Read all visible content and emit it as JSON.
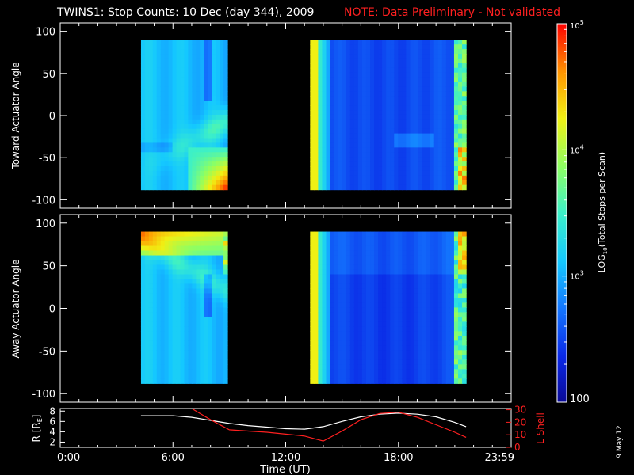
{
  "title_main": "TWINS1: Stop Counts: 10 Dec (day 344), 2009",
  "title_note": "NOTE: Data Preliminary - Not validated",
  "date_stamp": "9 May 12",
  "colors": {
    "background": "#000000",
    "axis": "#ffffff",
    "note": "#ff2020",
    "lshell": "#ff2020",
    "radius": "#ffffff"
  },
  "colorbar": {
    "label": "LOG10(Total Stops per Scan)",
    "label_main": "LOG",
    "label_sub": "10",
    "label_rest": "(Total Stops per Scan)",
    "tick_labels": [
      {
        "base": "10",
        "exp": "5",
        "value": 100000
      },
      {
        "base": "10",
        "exp": "4",
        "value": 10000
      },
      {
        "base": "10",
        "exp": "3",
        "value": 1000
      },
      {
        "base": "100",
        "exp": "",
        "value": 100
      }
    ],
    "scale": "log",
    "range": [
      100,
      100000
    ]
  },
  "chart_data": [
    {
      "type": "heatmap",
      "ylabel": "Toward Actuator Angle",
      "ylim": [
        -110,
        110
      ],
      "yticks": [
        "100",
        "50",
        "0",
        "-50",
        "-100"
      ],
      "ytick_values": [
        100,
        50,
        0,
        -50,
        -100
      ],
      "xlim_hours": [
        0,
        24
      ],
      "data_segments_hours": [
        [
          4.3,
          8.9
        ],
        [
          13.3,
          21.6
        ]
      ],
      "angle_range": [
        -88,
        90
      ]
    },
    {
      "type": "heatmap",
      "ylabel": "Away Actuator Angle",
      "ylim": [
        -110,
        110
      ],
      "yticks": [
        "100",
        "50",
        "0",
        "-50",
        "-100"
      ],
      "ytick_values": [
        100,
        50,
        0,
        -50,
        -100
      ],
      "xlim_hours": [
        0,
        24
      ],
      "data_segments_hours": [
        [
          4.3,
          8.9
        ],
        [
          13.3,
          21.6
        ]
      ],
      "angle_range": [
        -88,
        90
      ]
    },
    {
      "type": "line",
      "ylabel_left": "R [RE]",
      "ylabel_left_main": "R [R",
      "ylabel_left_sub": "E",
      "ylabel_left_end": "]",
      "ylabel_right": "L Shell",
      "ylim_left": [
        1,
        8.5
      ],
      "yticks_left": [
        "8",
        "6",
        "4",
        "2"
      ],
      "ytick_values_left": [
        8,
        6,
        4,
        2
      ],
      "ylim_right": [
        0,
        31
      ],
      "yticks_right": [
        "30",
        "20",
        "10",
        "0"
      ],
      "ytick_values_right": [
        30,
        20,
        10,
        0
      ],
      "xlabel": "Time (UT)",
      "xticks": [
        "0:00",
        "6:00",
        "12:00",
        "18:00",
        "23:59"
      ],
      "xtick_values": [
        0,
        6,
        12,
        18,
        24
      ],
      "series": [
        {
          "name": "R",
          "x": [
            4.3,
            6,
            7,
            8,
            9,
            10,
            11,
            12,
            13,
            14,
            15,
            16,
            17,
            18,
            19,
            20,
            21,
            21.6
          ],
          "values": [
            7.1,
            7.1,
            6.8,
            6.2,
            5.6,
            5.2,
            4.9,
            4.6,
            4.5,
            5.0,
            6.0,
            6.9,
            7.4,
            7.6,
            7.4,
            6.9,
            5.8,
            5.0
          ]
        },
        {
          "name": "L Shell",
          "x": [
            7,
            8,
            9,
            10,
            11,
            12,
            13,
            14,
            15,
            16,
            17,
            18,
            19,
            20,
            21,
            21.6
          ],
          "values": [
            31,
            22,
            14,
            13,
            12,
            10.5,
            9,
            5,
            13,
            22,
            27,
            28,
            24,
            18,
            12,
            8
          ]
        }
      ]
    }
  ]
}
